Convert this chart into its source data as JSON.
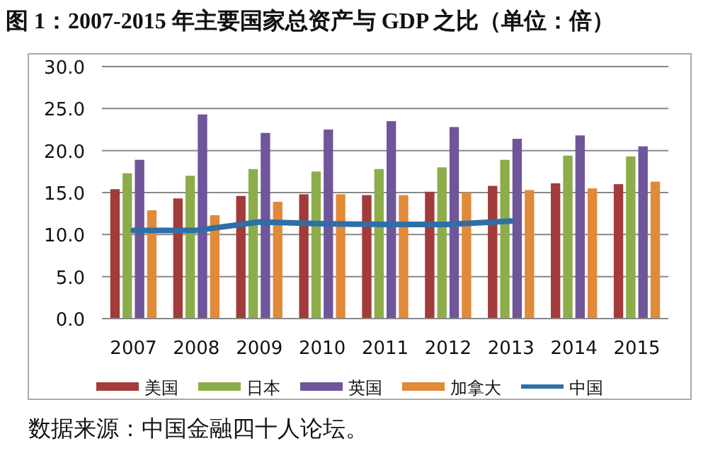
{
  "chart_data": {
    "type": "bar",
    "title": "图 1：2007-2015 年主要国家总资产与 GDP 之比（单位：倍）",
    "categories": [
      "2007",
      "2008",
      "2009",
      "2010",
      "2011",
      "2012",
      "2013",
      "2014",
      "2015"
    ],
    "series": [
      {
        "name": "美国",
        "color": "#a23b3a",
        "values": [
          15.4,
          14.3,
          14.6,
          14.8,
          14.7,
          15.1,
          15.8,
          16.1,
          16.0
        ]
      },
      {
        "name": "日本",
        "color": "#8cad4a",
        "values": [
          17.3,
          17.0,
          17.8,
          17.5,
          17.8,
          18.0,
          18.9,
          19.4,
          19.3
        ]
      },
      {
        "name": "英国",
        "color": "#6f559a",
        "values": [
          18.9,
          24.3,
          22.1,
          22.5,
          23.5,
          22.8,
          21.4,
          21.8,
          20.5
        ]
      },
      {
        "name": "加拿大",
        "color": "#e08a3a",
        "values": [
          12.9,
          12.3,
          13.9,
          14.8,
          14.7,
          15.0,
          15.3,
          15.5,
          16.3
        ]
      },
      {
        "name": "中国",
        "color": "#2f6ea6",
        "type": "line",
        "values": [
          10.5,
          10.5,
          11.5,
          11.3,
          11.2,
          11.2,
          11.6,
          null,
          null
        ]
      }
    ],
    "ylim": [
      0,
      30
    ],
    "yticks": [
      {
        "value": 0,
        "label": "0.0"
      },
      {
        "value": 5,
        "label": "5.0"
      },
      {
        "value": 10,
        "label": "10.0"
      },
      {
        "value": 15,
        "label": "15.0"
      },
      {
        "value": 20,
        "label": "20.0"
      },
      {
        "value": 25,
        "label": "25.0"
      },
      {
        "value": 30,
        "label": "30.0"
      }
    ],
    "grid": "y",
    "legend": "bottom",
    "line_style": "solid",
    "marker": "none",
    "annotations": [
      "数据来源：中国金融四十人论坛。"
    ]
  }
}
